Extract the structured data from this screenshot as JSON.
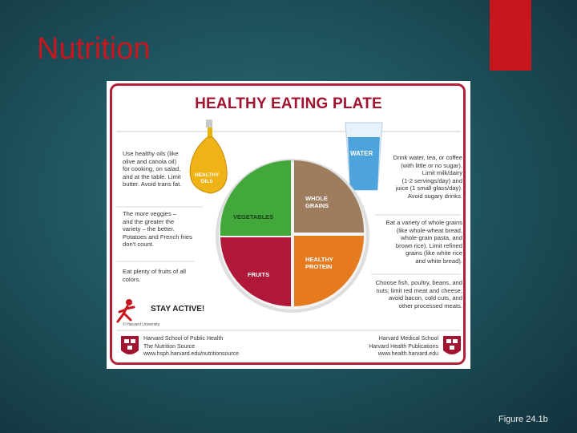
{
  "slide": {
    "title": "Nutrition",
    "caption": "Figure 24.1b",
    "accent_color": "#c8161e"
  },
  "poster": {
    "title": "HEALTHY EATING PLATE",
    "oil_text": [
      "Use healthy oils (like",
      "olive and canola oil)",
      "for cooking, on salad,",
      "and at the table. Limit",
      "butter. Avoid trans fat."
    ],
    "oil_label": [
      "HEALTHY",
      "OILS"
    ],
    "veggies_text": [
      "The more veggies –",
      "and the greater the",
      "variety – the better.",
      "Potatoes and French fries",
      "don't count."
    ],
    "fruits_text": [
      "Eat plenty of fruits of all",
      "colors."
    ],
    "water_label": "WATER",
    "water_text": [
      "Drink water, tea, or coffee",
      "(with little or no sugar).",
      "Limit milk/dairy",
      "(1-2 servings/day) and",
      "juice (1 small glass/day).",
      "Avoid sugary drinks."
    ],
    "grains_text": [
      "Eat a variety of whole grains",
      "(like whole-wheat bread,",
      "whole-grain pasta, and",
      "brown rice). Limit refined",
      "grains (like white rice",
      "and white bread)."
    ],
    "protein_text": [
      "Choose fish, poultry, beans, and",
      "nuts; limit red meat and cheese;",
      "avoid bacon, cold cuts, and",
      "other processed meats."
    ],
    "plate": {
      "vegetables": "VEGETABLES",
      "grains": [
        "WHOLE",
        "GRAINS"
      ],
      "fruits": "FRUITS",
      "protein": [
        "HEALTHY",
        "PROTEIN"
      ],
      "colors": {
        "vegetables": "#43a83c",
        "grains": "#9e7c5e",
        "fruits": "#b0183a",
        "protein": "#e57a1f"
      }
    },
    "stay_active": "STAY ACTIVE!",
    "copyright": "© Harvard University",
    "footer_left": [
      "Harvard School of Public Health",
      "The Nutrition Source",
      "www.hsph.harvard.edu/nutritionsource"
    ],
    "footer_right": [
      "Harvard Medical School",
      "Harvard Health Publications",
      "www.health.harvard.edu"
    ]
  }
}
